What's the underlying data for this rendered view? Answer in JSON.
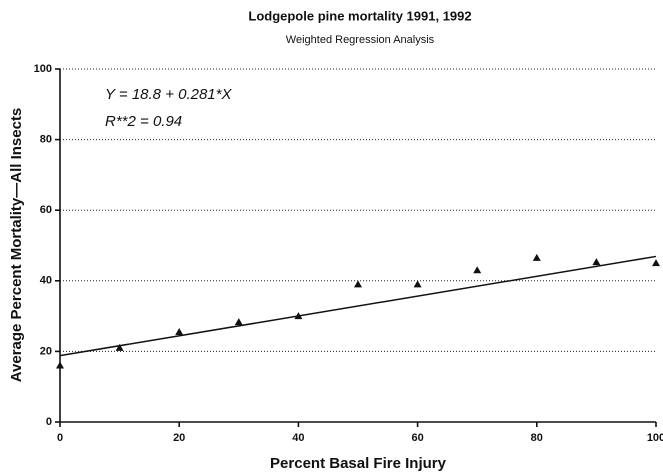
{
  "chart_data": {
    "type": "scatter",
    "title": "Lodgepole pine mortality 1991, 1992",
    "subtitle": "Weighted Regression Analysis",
    "x_label": "Percent Basal Fire Injury",
    "y_label": "Average Percent Mortality—All Insects",
    "annotations": [
      "Y = 18.8 + 0.281*X",
      "R**2 = 0.94"
    ],
    "x": [
      0,
      10,
      20,
      30,
      40,
      50,
      60,
      70,
      80,
      90,
      100
    ],
    "values": [
      16,
      21,
      25.5,
      28.3,
      30,
      39,
      39,
      43,
      46.5,
      45.3,
      45
    ],
    "fit": {
      "x": [
        0,
        100
      ],
      "values": [
        18.8,
        46.9
      ]
    },
    "color": "#111111",
    "xlim": [
      0,
      100
    ],
    "xticks": [
      0,
      20,
      40,
      60,
      80,
      100
    ],
    "ylim": [
      0,
      100
    ],
    "yticks": [
      0,
      20,
      40,
      60,
      80,
      100
    ],
    "grid": true
  }
}
